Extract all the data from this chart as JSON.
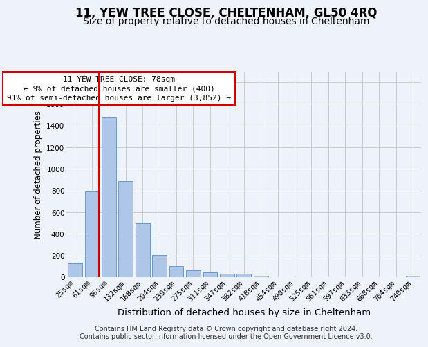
{
  "title": "11, YEW TREE CLOSE, CHELTENHAM, GL50 4RQ",
  "subtitle": "Size of property relative to detached houses in Cheltenham",
  "xlabel": "Distribution of detached houses by size in Cheltenham",
  "ylabel": "Number of detached properties",
  "categories": [
    "25sqm",
    "61sqm",
    "96sqm",
    "132sqm",
    "168sqm",
    "204sqm",
    "239sqm",
    "275sqm",
    "311sqm",
    "347sqm",
    "382sqm",
    "418sqm",
    "454sqm",
    "490sqm",
    "525sqm",
    "561sqm",
    "597sqm",
    "633sqm",
    "668sqm",
    "704sqm",
    "740sqm"
  ],
  "values": [
    128,
    795,
    1480,
    885,
    495,
    205,
    105,
    65,
    45,
    35,
    30,
    15,
    0,
    0,
    0,
    0,
    0,
    0,
    0,
    0,
    15
  ],
  "bar_color": "#aec6e8",
  "bar_edge_color": "#5a8fc2",
  "vline_color": "#cc0000",
  "vline_pos": 1.43,
  "annotation_text": "11 YEW TREE CLOSE: 78sqm\n← 9% of detached houses are smaller (400)\n91% of semi-detached houses are larger (3,852) →",
  "annotation_box_color": "#ffffff",
  "annotation_box_edge": "#cc0000",
  "footer_text": "Contains HM Land Registry data © Crown copyright and database right 2024.\nContains public sector information licensed under the Open Government Licence v3.0.",
  "ylim": [
    0,
    1900
  ],
  "bg_color": "#eef2fa",
  "grid_color": "#cccccc",
  "title_fontsize": 12,
  "subtitle_fontsize": 10,
  "ylabel_fontsize": 8.5,
  "xlabel_fontsize": 9.5,
  "tick_fontsize": 7.5,
  "footer_fontsize": 7,
  "annot_fontsize": 8
}
